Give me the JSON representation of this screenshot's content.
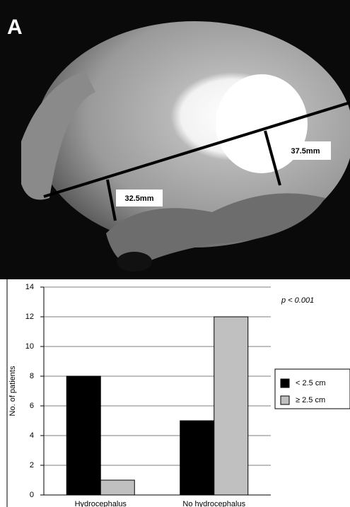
{
  "figure": {
    "panel_label": "A",
    "measurements": [
      "37.5mm",
      "32.5mm"
    ]
  },
  "chart_data": {
    "type": "bar",
    "y_label": "No. of patients",
    "annotation": "p < 0.001",
    "categories": [
      "Hydrocephalus",
      "No hydrocephalus"
    ],
    "series": [
      {
        "name": "< 2.5 cm",
        "color": "#000000",
        "values": [
          8,
          5
        ]
      },
      {
        "name": "≥ 2.5 cm",
        "color": "#c0c0c0",
        "values": [
          1,
          12
        ]
      }
    ],
    "ylim": [
      0,
      14
    ],
    "yticks": [
      0,
      2,
      4,
      6,
      8,
      10,
      12,
      14
    ],
    "grid": true,
    "legend": "right"
  }
}
